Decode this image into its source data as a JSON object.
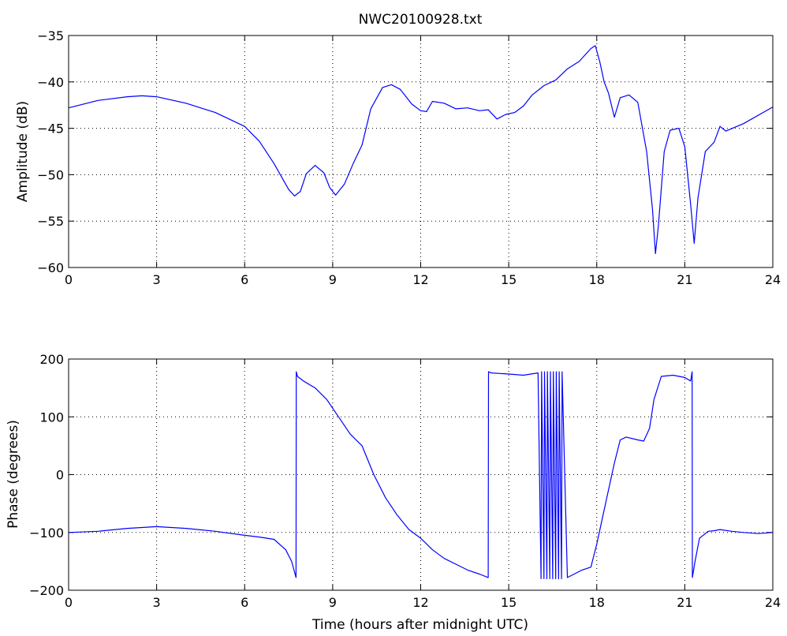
{
  "figure": {
    "title": "NWC20100928.txt"
  },
  "chart_data": [
    {
      "type": "line",
      "title": "NWC20100928.txt",
      "xlabel": "",
      "ylabel": "Amplitude (dB)",
      "xlim": [
        0,
        24
      ],
      "ylim": [
        -60,
        -35
      ],
      "xticks": [
        0,
        3,
        6,
        9,
        12,
        15,
        18,
        21,
        24
      ],
      "yticks": [
        -60,
        -55,
        -50,
        -45,
        -40,
        -35
      ],
      "grid": true,
      "color": "#0000ff",
      "series": [
        {
          "name": "",
          "x": [
            0,
            1,
            2,
            2.5,
            3,
            4,
            5,
            6,
            6.5,
            7,
            7.5,
            7.7,
            7.9,
            8.1,
            8.4,
            8.7,
            8.9,
            9.1,
            9.4,
            9.7,
            10,
            10.3,
            10.7,
            11,
            11.3,
            11.7,
            12,
            12.2,
            12.4,
            12.8,
            13.2,
            13.6,
            14,
            14.3,
            14.6,
            14.9,
            15.2,
            15.5,
            15.8,
            16.2,
            16.6,
            17,
            17.4,
            17.8,
            17.95,
            18.1,
            18.25,
            18.4,
            18.6,
            18.8,
            19.1,
            19.4,
            19.7,
            19.9,
            20,
            20.1,
            20.3,
            20.5,
            20.8,
            21,
            21.2,
            21.32,
            21.45,
            21.7,
            22,
            22.2,
            22.4,
            23,
            24
          ],
          "y": [
            -42.8,
            -42,
            -41.6,
            -41.5,
            -41.6,
            -42.3,
            -43.3,
            -44.8,
            -46.4,
            -48.8,
            -51.6,
            -52.3,
            -51.8,
            -49.9,
            -49,
            -49.8,
            -51.4,
            -52.2,
            -51,
            -48.8,
            -46.8,
            -42.9,
            -40.6,
            -40.3,
            -40.8,
            -42.4,
            -43.1,
            -43.2,
            -42.1,
            -42.3,
            -42.9,
            -42.8,
            -43.1,
            -43,
            -44,
            -43.5,
            -43.3,
            -42.6,
            -41.4,
            -40.4,
            -39.8,
            -38.6,
            -37.8,
            -36.4,
            -36.1,
            -37.8,
            -40,
            -41.2,
            -43.8,
            -41.7,
            -41.4,
            -42.2,
            -47.5,
            -53.7,
            -58.5,
            -55.5,
            -47.5,
            -45.2,
            -45,
            -47,
            -53.2,
            -57.4,
            -52.5,
            -47.5,
            -46.5,
            -44.8,
            -45.3,
            -44.5,
            -42.7
          ]
        }
      ]
    },
    {
      "type": "line",
      "title": "",
      "xlabel": "Time (hours after midnight UTC)",
      "ylabel": "Phase (degrees)",
      "xlim": [
        0,
        24
      ],
      "ylim": [
        -200,
        200
      ],
      "xticks": [
        0,
        3,
        6,
        9,
        12,
        15,
        18,
        21,
        24
      ],
      "yticks": [
        -200,
        -100,
        0,
        100,
        200
      ],
      "grid": true,
      "color": "#0000ff",
      "series": [
        {
          "name": "",
          "x": [
            0,
            1,
            2,
            3,
            4,
            5,
            6,
            6.5,
            7,
            7.4,
            7.6,
            7.75,
            7.76,
            7.8,
            8,
            8.4,
            8.8,
            9.2,
            9.6,
            10,
            10.4,
            10.8,
            11.2,
            11.6,
            12,
            12.4,
            12.8,
            13.2,
            13.6,
            14,
            14.3,
            14.31,
            14.4,
            15,
            15.5,
            16,
            16.1,
            16.12,
            16.2,
            16.22,
            16.3,
            16.32,
            16.4,
            16.42,
            16.5,
            16.52,
            16.6,
            16.62,
            16.7,
            16.72,
            16.8,
            16.82,
            17,
            17.5,
            17.8,
            18,
            18.3,
            18.6,
            18.8,
            19,
            19.4,
            19.6,
            19.8,
            19.95,
            20.2,
            20.6,
            21,
            21.2,
            21.25,
            21.26,
            21.35,
            21.5,
            21.8,
            22,
            22.2,
            22.6,
            23,
            23.5,
            24
          ],
          "y": [
            -100,
            -98,
            -93,
            -90,
            -93,
            -98,
            -105,
            -108,
            -112,
            -130,
            -150,
            -178,
            178,
            170,
            162,
            150,
            130,
            100,
            70,
            50,
            0,
            -40,
            -70,
            -95,
            -110,
            -130,
            -145,
            -155,
            -165,
            -172,
            -178,
            178,
            176,
            174,
            172,
            176,
            -180,
            178,
            -180,
            178,
            -180,
            178,
            -180,
            178,
            -180,
            178,
            -180,
            178,
            -180,
            178,
            -180,
            178,
            -178,
            -165,
            -160,
            -120,
            -50,
            20,
            60,
            65,
            60,
            58,
            80,
            130,
            170,
            172,
            168,
            162,
            178,
            -178,
            -150,
            -110,
            -98,
            -97,
            -95,
            -98,
            -100,
            -102,
            -100
          ]
        }
      ]
    }
  ]
}
